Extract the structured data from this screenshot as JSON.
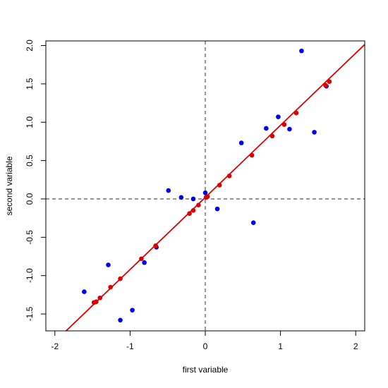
{
  "chart_data": {
    "type": "scatter",
    "title": "",
    "xlabel": "first variable",
    "ylabel": "second variable",
    "xlim": [
      -2.12,
      2.12
    ],
    "ylim": [
      -1.72,
      2.06
    ],
    "xticks": [
      -2,
      -1,
      0,
      1,
      2
    ],
    "yticks": [
      -1.5,
      -1.0,
      -0.5,
      0.0,
      0.5,
      1.0,
      1.5,
      2.0
    ],
    "xtick_labels": [
      "-2",
      "-1",
      "0",
      "1",
      "2"
    ],
    "ytick_labels": [
      "-1.5",
      "-1.0",
      "-0.5",
      "0.0",
      "0.5",
      "1.0",
      "1.5",
      "2.0"
    ],
    "reference_lines": {
      "x": 0,
      "y": 0,
      "style": "dashed",
      "color": "#555555"
    },
    "fit_line": {
      "slope": 0.94,
      "intercept": 0.02,
      "color": "#dd0000"
    },
    "series": [
      {
        "color": "#0000ee",
        "points": [
          {
            "x": 1.28,
            "y": 1.93
          },
          {
            "x": 1.61,
            "y": 1.47
          },
          {
            "x": 1.45,
            "y": 0.87
          },
          {
            "x": 0.97,
            "y": 1.07
          },
          {
            "x": 0.81,
            "y": 0.92
          },
          {
            "x": 1.12,
            "y": 0.91
          },
          {
            "x": 0.48,
            "y": 0.73
          },
          {
            "x": 0.64,
            "y": -0.31
          },
          {
            "x": 0.16,
            "y": -0.13
          },
          {
            "x": 0.0,
            "y": 0.08
          },
          {
            "x": -0.16,
            "y": 0.0
          },
          {
            "x": -0.32,
            "y": 0.02
          },
          {
            "x": -0.49,
            "y": 0.11
          },
          {
            "x": -0.65,
            "y": -0.63
          },
          {
            "x": -0.81,
            "y": -0.83
          },
          {
            "x": -1.29,
            "y": -0.86
          },
          {
            "x": -0.97,
            "y": -1.45
          },
          {
            "x": -1.13,
            "y": -1.58
          },
          {
            "x": -1.61,
            "y": -1.21
          }
        ]
      },
      {
        "color": "#dd0000",
        "points": [
          {
            "x": 1.65,
            "y": 1.53
          },
          {
            "x": 1.6,
            "y": 1.48
          },
          {
            "x": 1.21,
            "y": 1.12
          },
          {
            "x": 1.05,
            "y": 0.97
          },
          {
            "x": 0.89,
            "y": 0.82
          },
          {
            "x": 0.62,
            "y": 0.57
          },
          {
            "x": 0.32,
            "y": 0.3
          },
          {
            "x": 0.19,
            "y": 0.18
          },
          {
            "x": 0.03,
            "y": 0.03
          },
          {
            "x": 0.01,
            "y": 0.02
          },
          {
            "x": -0.09,
            "y": -0.08
          },
          {
            "x": -0.16,
            "y": -0.15
          },
          {
            "x": -0.21,
            "y": -0.19
          },
          {
            "x": -0.66,
            "y": -0.61
          },
          {
            "x": -0.85,
            "y": -0.78
          },
          {
            "x": -1.13,
            "y": -1.04
          },
          {
            "x": -1.26,
            "y": -1.15
          },
          {
            "x": -1.4,
            "y": -1.29
          },
          {
            "x": -1.45,
            "y": -1.34
          },
          {
            "x": -1.48,
            "y": -1.35
          }
        ]
      }
    ]
  }
}
